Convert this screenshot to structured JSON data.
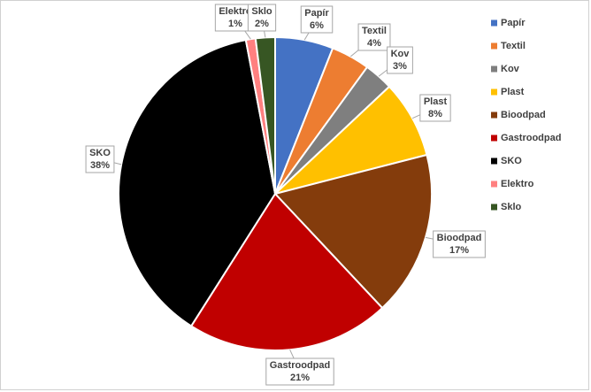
{
  "chart_data": {
    "type": "pie",
    "categories": [
      "Papír",
      "Textil",
      "Kov",
      "Plast",
      "Bioodpad",
      "Gastroodpad",
      "SKO",
      "Elektro",
      "Sklo"
    ],
    "values": [
      6,
      4,
      3,
      8,
      17,
      21,
      38,
      1,
      2
    ],
    "value_labels": [
      "6%",
      "4%",
      "3%",
      "8%",
      "17%",
      "21%",
      "38%",
      "1%",
      "2%"
    ],
    "colors": [
      "#4472c4",
      "#ed7d31",
      "#7f7f7f",
      "#ffc000",
      "#843c0c",
      "#c00000",
      "#000000",
      "#ff8080",
      "#375623"
    ],
    "legend": "right"
  }
}
